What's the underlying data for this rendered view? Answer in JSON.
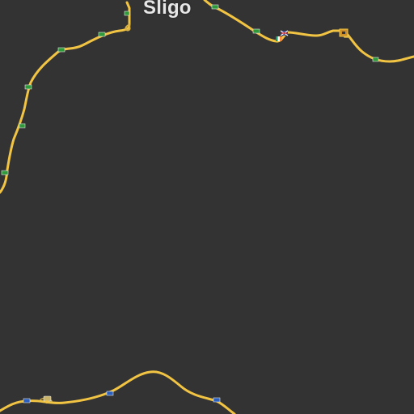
{
  "map": {
    "background_color": "#333333",
    "road_color": "#f2c443",
    "city": {
      "name": "Sligo"
    },
    "icons": {
      "road_sign": "green-road-sign-icon",
      "road_sign_blue": "blue-road-sign-icon",
      "flag_uk": "uk-flag-icon",
      "flag_ireland": "ireland-flag-icon",
      "company": "company-depot-icon",
      "garage": "garage-icon"
    }
  }
}
